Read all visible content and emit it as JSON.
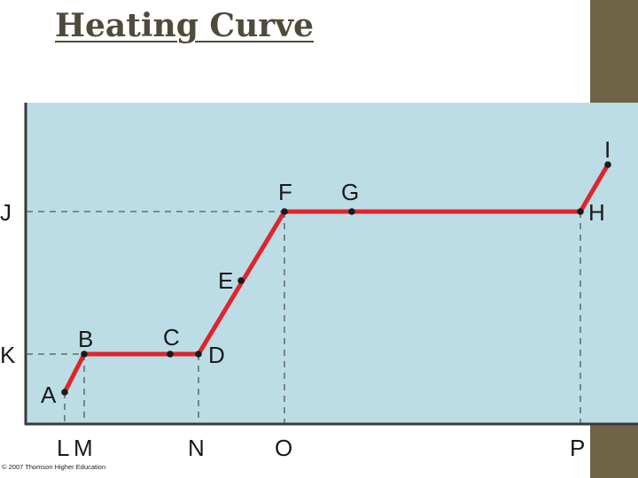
{
  "slide": {
    "title": "Heating Curve",
    "credit": "© 2007 Thomson Higher Education"
  },
  "colors": {
    "plot_background": "#bcdde6",
    "plot_border": "#3a3a3a",
    "curve": "#e0242c",
    "guide_lines": "#555555",
    "title": "#4e4b3c",
    "side_bar": "#6f6447"
  },
  "diagram": {
    "point_labels": [
      "A",
      "B",
      "C",
      "D",
      "E",
      "F",
      "G",
      "H",
      "I"
    ],
    "y_axis_markers": [
      "J",
      "K"
    ],
    "x_axis_markers": [
      "L",
      "M",
      "N",
      "O",
      "P"
    ]
  }
}
